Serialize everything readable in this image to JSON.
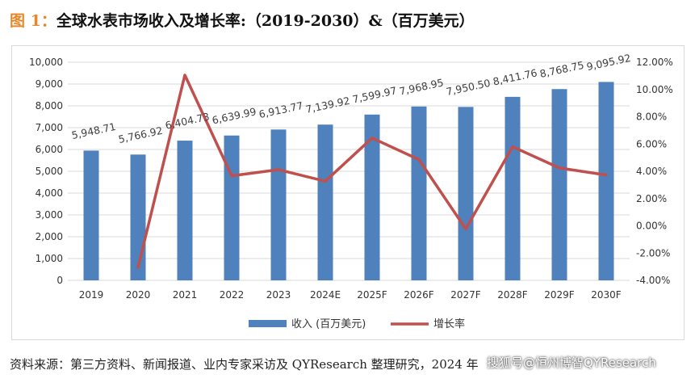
{
  "figure": {
    "label": "图 1：",
    "title": "全球水表市场收入及增长率:（2019-2030）&（百万美元）"
  },
  "source_text": "资料来源：第三方资料、新闻报道、业内专家采访及 QYResearch 整理研究，2024 年",
  "watermark": "搜狐号@恒州博智QYResearch",
  "chart_data": {
    "type": "bar",
    "categories": [
      "2019",
      "2020",
      "2021",
      "2022",
      "2023",
      "2024E",
      "2025F",
      "2026F",
      "2027F",
      "2028F",
      "2029F",
      "2030F"
    ],
    "series": [
      {
        "name": "收入 (百万美元)",
        "type": "bar",
        "axis": "left",
        "color": "#4f81bd",
        "values": [
          5948.71,
          5766.92,
          6404.73,
          6639.99,
          6913.77,
          7139.92,
          7599.97,
          7968.95,
          7950.5,
          8411.76,
          8768.75,
          9095.92
        ],
        "labels": [
          "5,948.71",
          "5,766.92",
          "6,404.73",
          "6,639.99",
          "6,913.77",
          "7,139.92",
          "7,599.97",
          "7,968.95",
          "7,950.50",
          "8,411.76",
          "8,768.75",
          "9,095.92"
        ]
      },
      {
        "name": "增长率",
        "type": "line",
        "axis": "right",
        "color": "#c0504d",
        "values": [
          null,
          -3.06,
          11.06,
          3.67,
          4.12,
          3.27,
          6.44,
          4.86,
          -0.23,
          5.8,
          4.24,
          3.73
        ]
      }
    ],
    "y_left": {
      "min": 0,
      "max": 10000,
      "step": 1000,
      "tick_labels": [
        "0",
        "1,000",
        "2,000",
        "3,000",
        "4,000",
        "5,000",
        "6,000",
        "7,000",
        "8,000",
        "9,000",
        "10,000"
      ]
    },
    "y_right": {
      "min": -4,
      "max": 12,
      "step": 2,
      "tick_labels": [
        "-4.00%",
        "-2.00%",
        "0.00%",
        "2.00%",
        "4.00%",
        "6.00%",
        "8.00%",
        "10.00%",
        "12.00%"
      ]
    },
    "grid": true,
    "legend": "bottom"
  }
}
